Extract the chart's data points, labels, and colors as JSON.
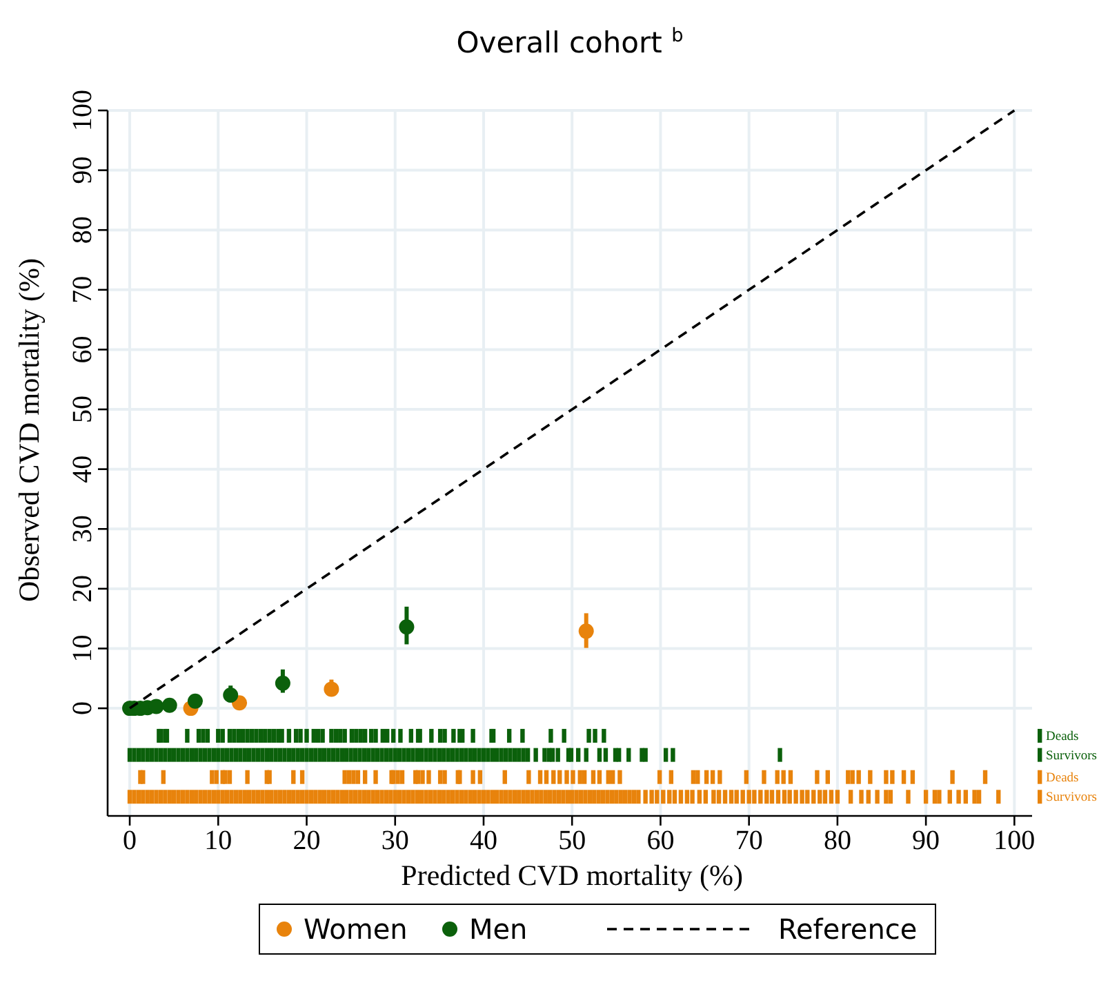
{
  "chart_data": {
    "type": "scatter",
    "title": "Overall cohort $^{b}$",
    "xlabel": "Predicted CVD mortality (%)",
    "ylabel": "Observed CVD mortality (%)",
    "xlim": [
      -2.5,
      102
    ],
    "ylim": [
      -18,
      100
    ],
    "xticks": [
      0,
      10,
      20,
      30,
      40,
      50,
      60,
      70,
      80,
      90,
      100
    ],
    "yticks": [
      0,
      10,
      20,
      30,
      40,
      50,
      60,
      70,
      80,
      90,
      100
    ],
    "grid": true,
    "legend": "bottom",
    "marker": "circle",
    "series": [
      {
        "name": "Women",
        "type": "scatter",
        "color": "#e8830c",
        "x": [
          6.9,
          12.4,
          22.8,
          51.6
        ],
        "values": [
          0,
          0.9,
          3.2,
          12.9
        ],
        "errors": [
          null,
          null,
          [
            2,
            4.8
          ],
          [
            10.1,
            15.9
          ]
        ]
      },
      {
        "name": "Men",
        "type": "scatter",
        "color": "#0b600b",
        "x": [
          0,
          0.5,
          1.2,
          2,
          3,
          4.5,
          7.4,
          11.4,
          17.3,
          31.3
        ],
        "values": [
          0,
          0,
          0,
          0.1,
          0.3,
          0.5,
          1.2,
          2.2,
          4.2,
          13.6
        ],
        "errors": [
          null,
          null,
          null,
          null,
          null,
          null,
          [
            0.5,
            2
          ],
          [
            1,
            3.8
          ],
          [
            2.6,
            6.5
          ],
          [
            10.7,
            17
          ]
        ]
      },
      {
        "name": "Reference",
        "type": "line",
        "color": "#000000",
        "line_style": "dashed",
        "marker": "none",
        "x": [
          0,
          100
        ],
        "values": [
          0,
          100
        ]
      },
      {
        "name": "Deads",
        "type": "scatter",
        "marker": "square",
        "color": "#0b600b",
        "x": [
          3.3,
          3.5,
          4.0,
          4.2,
          6.5,
          7.8,
          8.3,
          8.8,
          10.0,
          10.5,
          11.3,
          11.8,
          12.3,
          12.8,
          13.3,
          13.8,
          14.3,
          14.8,
          15.3,
          15.8,
          16.3,
          16.8,
          17.2,
          18.0,
          18.8,
          19.3,
          20.0,
          20.8,
          21.3,
          21.8,
          22.8,
          23.3,
          23.8,
          24.3,
          25.1,
          25.6,
          26.1,
          26.6,
          27.3,
          27.8,
          28.6,
          29.1,
          29.8,
          30.6,
          31.8,
          32.6,
          32.8,
          34.1,
          35.1,
          35.6,
          36.6,
          37.3,
          37.6,
          38.8,
          40.9,
          41.1,
          42.9,
          44.4,
          47.6,
          49.1,
          51.9,
          52.6,
          53.6
        ],
        "values": [
          -4.6,
          -4.6,
          -4.6,
          -4.6,
          -4.6,
          -4.6,
          -4.6,
          -4.6,
          -4.6,
          -4.6,
          -4.6,
          -4.6,
          -4.6,
          -4.6,
          -4.6,
          -4.6,
          -4.6,
          -4.6,
          -4.6,
          -4.6,
          -4.6,
          -4.6,
          -4.6,
          -4.6,
          -4.6,
          -4.6,
          -4.6,
          -4.6,
          -4.6,
          -4.6,
          -4.6,
          -4.6,
          -4.6,
          -4.6,
          -4.6,
          -4.6,
          -4.6,
          -4.6,
          -4.6,
          -4.6,
          -4.6,
          -4.6,
          -4.6,
          -4.6,
          -4.6,
          -4.6,
          -4.6,
          -4.6,
          -4.6,
          -4.6,
          -4.6,
          -4.6,
          -4.6,
          -4.6,
          -4.6,
          -4.6,
          -4.6,
          -4.6,
          -4.6,
          -4.6,
          -4.6,
          -4.6,
          -4.6
        ]
      },
      {
        "name": "Survivors",
        "type": "scatter",
        "marker": "square",
        "color": "#0b600b",
        "x": [
          0,
          0.5,
          1,
          1.5,
          2,
          2.5,
          3,
          3.5,
          4,
          4.5,
          5,
          5.5,
          6,
          6.5,
          7,
          7.5,
          8,
          8.5,
          9,
          9.5,
          10,
          10.5,
          11,
          11.5,
          12,
          12.5,
          13,
          13.5,
          14,
          14.5,
          15,
          15.5,
          16,
          16.5,
          17,
          17.5,
          18,
          18.5,
          19,
          19.5,
          20,
          20.5,
          21,
          21.5,
          22,
          22.5,
          23,
          23.5,
          24,
          24.5,
          25,
          25.5,
          26,
          26.5,
          27,
          27.5,
          28,
          28.5,
          29,
          29.5,
          30,
          30.5,
          31,
          31.5,
          32,
          32.5,
          33,
          33.5,
          34,
          34.5,
          35,
          35.5,
          36,
          36.5,
          37,
          37.5,
          38,
          38.5,
          39,
          39.5,
          40,
          40.5,
          41,
          41.5,
          42,
          42.5,
          43,
          43.5,
          44,
          44.5,
          45,
          45.9,
          46.9,
          47.4,
          47.8,
          48.4,
          49.6,
          49.9,
          50.7,
          51.6,
          53.1,
          53.8,
          54.9,
          55.3,
          56.4,
          57.9,
          58.3,
          60.6,
          61.4,
          73.5
        ],
        "values": [
          -7.8,
          -7.8,
          -7.8,
          -7.8,
          -7.8,
          -7.8,
          -7.8,
          -7.8,
          -7.8,
          -7.8,
          -7.8,
          -7.8,
          -7.8,
          -7.8,
          -7.8,
          -7.8,
          -7.8,
          -7.8,
          -7.8,
          -7.8,
          -7.8,
          -7.8,
          -7.8,
          -7.8,
          -7.8,
          -7.8,
          -7.8,
          -7.8,
          -7.8,
          -7.8,
          -7.8,
          -7.8,
          -7.8,
          -7.8,
          -7.8,
          -7.8,
          -7.8,
          -7.8,
          -7.8,
          -7.8,
          -7.8,
          -7.8,
          -7.8,
          -7.8,
          -7.8,
          -7.8,
          -7.8,
          -7.8,
          -7.8,
          -7.8,
          -7.8,
          -7.8,
          -7.8,
          -7.8,
          -7.8,
          -7.8,
          -7.8,
          -7.8,
          -7.8,
          -7.8,
          -7.8,
          -7.8,
          -7.8,
          -7.8,
          -7.8,
          -7.8,
          -7.8,
          -7.8,
          -7.8,
          -7.8,
          -7.8,
          -7.8,
          -7.8,
          -7.8,
          -7.8,
          -7.8,
          -7.8,
          -7.8,
          -7.8,
          -7.8,
          -7.8,
          -7.8,
          -7.8,
          -7.8,
          -7.8,
          -7.8,
          -7.8,
          -7.8,
          -7.8,
          -7.8,
          -7.8,
          -7.8,
          -7.8,
          -7.8,
          -7.8,
          -7.8,
          -7.8,
          -7.8,
          -7.8,
          -7.8,
          -7.8,
          -7.8,
          -7.8,
          -7.8,
          -7.8,
          -7.8,
          -7.8,
          -7.8,
          -7.8,
          -7.8
        ]
      },
      {
        "name": "Deads",
        "type": "scatter",
        "marker": "square",
        "color": "#e8830c",
        "x": [
          1.2,
          1.5,
          3.8,
          9.3,
          9.8,
          10.5,
          10.8,
          11.3,
          13.3,
          15.5,
          15.8,
          18.5,
          19.5,
          24.3,
          24.8,
          25.3,
          25.8,
          26.6,
          27.8,
          29.6,
          29.8,
          30.3,
          30.8,
          32.3,
          32.6,
          33.1,
          33.8,
          35.1,
          35.6,
          37.1,
          37.3,
          38.8,
          39.6,
          42.4,
          45.1,
          46.4,
          47.1,
          47.9,
          48.6,
          49.4,
          50.1,
          50.9,
          51.4,
          52.4,
          53.1,
          54.1,
          54.6,
          55.4,
          59.9,
          61.2,
          63.7,
          64.2,
          65.2,
          65.9,
          66.7,
          69.7,
          71.7,
          73.2,
          73.9,
          74.7,
          77.7,
          78.9,
          81.2,
          81.7,
          82.4,
          83.7,
          85.5,
          86.2,
          87.5,
          88.5,
          93.0,
          96.7
        ],
        "values": [
          -11.5,
          -11.5,
          -11.5,
          -11.5,
          -11.5,
          -11.5,
          -11.5,
          -11.5,
          -11.5,
          -11.5,
          -11.5,
          -11.5,
          -11.5,
          -11.5,
          -11.5,
          -11.5,
          -11.5,
          -11.5,
          -11.5,
          -11.5,
          -11.5,
          -11.5,
          -11.5,
          -11.5,
          -11.5,
          -11.5,
          -11.5,
          -11.5,
          -11.5,
          -11.5,
          -11.5,
          -11.5,
          -11.5,
          -11.5,
          -11.5,
          -11.5,
          -11.5,
          -11.5,
          -11.5,
          -11.5,
          -11.5,
          -11.5,
          -11.5,
          -11.5,
          -11.5,
          -11.5,
          -11.5,
          -11.5,
          -11.5,
          -11.5,
          -11.5,
          -11.5,
          -11.5,
          -11.5,
          -11.5,
          -11.5,
          -11.5,
          -11.5,
          -11.5,
          -11.5,
          -11.5,
          -11.5,
          -11.5,
          -11.5,
          -11.5,
          -11.5,
          -11.5,
          -11.5,
          -11.5,
          -11.5,
          -11.5,
          -11.5
        ]
      },
      {
        "name": "Survivors",
        "type": "scatter",
        "marker": "square",
        "color": "#e8830c",
        "x": [
          0,
          0.5,
          1,
          1.5,
          2,
          2.5,
          3,
          3.5,
          4,
          4.5,
          5,
          5.5,
          6,
          6.5,
          7,
          7.5,
          8,
          8.5,
          9,
          9.5,
          10,
          10.5,
          11,
          11.5,
          12,
          12.5,
          13,
          13.5,
          14,
          14.5,
          15,
          15.5,
          16,
          16.5,
          17,
          17.5,
          18,
          18.5,
          19,
          19.5,
          20,
          20.5,
          21,
          21.5,
          22,
          22.5,
          23,
          23.5,
          24,
          24.5,
          25,
          25.5,
          26,
          26.5,
          27,
          27.5,
          28,
          28.5,
          29,
          29.5,
          30,
          30.5,
          31,
          31.5,
          32,
          32.5,
          33,
          33.5,
          34,
          34.5,
          35,
          35.5,
          36,
          36.5,
          37,
          37.5,
          38,
          38.5,
          39,
          39.5,
          40,
          40.5,
          41,
          41.5,
          42,
          42.5,
          43,
          43.5,
          44,
          44.5,
          45,
          45.5,
          46,
          46.5,
          47,
          47.5,
          48,
          48.5,
          49,
          49.5,
          50,
          50.5,
          51,
          51.5,
          52,
          52.5,
          53,
          53.5,
          54,
          54.5,
          55,
          55.5,
          56,
          56.5,
          57,
          57.5,
          58.3,
          59,
          59.6,
          60.3,
          61,
          61.6,
          62.3,
          63,
          63.6,
          64.4,
          65.1,
          66,
          66.6,
          67.3,
          68,
          68.6,
          69.3,
          70,
          70.6,
          71.3,
          72,
          72.6,
          73.3,
          74,
          74.6,
          75.3,
          76,
          76.6,
          77.3,
          78,
          78.6,
          79.3,
          80,
          81.5,
          82.7,
          83.5,
          84.5,
          85.5,
          86,
          88,
          90,
          91,
          91.5,
          92.7,
          93.7,
          94.5,
          95.5,
          96,
          98.2
        ],
        "values": [
          -14.8,
          -14.8,
          -14.8,
          -14.8,
          -14.8,
          -14.8,
          -14.8,
          -14.8,
          -14.8,
          -14.8,
          -14.8,
          -14.8,
          -14.8,
          -14.8,
          -14.8,
          -14.8,
          -14.8,
          -14.8,
          -14.8,
          -14.8,
          -14.8,
          -14.8,
          -14.8,
          -14.8,
          -14.8,
          -14.8,
          -14.8,
          -14.8,
          -14.8,
          -14.8,
          -14.8,
          -14.8,
          -14.8,
          -14.8,
          -14.8,
          -14.8,
          -14.8,
          -14.8,
          -14.8,
          -14.8,
          -14.8,
          -14.8,
          -14.8,
          -14.8,
          -14.8,
          -14.8,
          -14.8,
          -14.8,
          -14.8,
          -14.8,
          -14.8,
          -14.8,
          -14.8,
          -14.8,
          -14.8,
          -14.8,
          -14.8,
          -14.8,
          -14.8,
          -14.8,
          -14.8,
          -14.8,
          -14.8,
          -14.8,
          -14.8,
          -14.8,
          -14.8,
          -14.8,
          -14.8,
          -14.8,
          -14.8,
          -14.8,
          -14.8,
          -14.8,
          -14.8,
          -14.8,
          -14.8,
          -14.8,
          -14.8,
          -14.8,
          -14.8,
          -14.8,
          -14.8,
          -14.8,
          -14.8,
          -14.8,
          -14.8,
          -14.8,
          -14.8,
          -14.8,
          -14.8,
          -14.8,
          -14.8,
          -14.8,
          -14.8,
          -14.8,
          -14.8,
          -14.8,
          -14.8,
          -14.8,
          -14.8,
          -14.8,
          -14.8,
          -14.8,
          -14.8,
          -14.8,
          -14.8,
          -14.8,
          -14.8,
          -14.8,
          -14.8,
          -14.8,
          -14.8,
          -14.8,
          -14.8,
          -14.8,
          -14.8,
          -14.8,
          -14.8,
          -14.8,
          -14.8,
          -14.8,
          -14.8,
          -14.8,
          -14.8,
          -14.8,
          -14.8,
          -14.8,
          -14.8,
          -14.8,
          -14.8,
          -14.8,
          -14.8,
          -14.8,
          -14.8,
          -14.8,
          -14.8,
          -14.8,
          -14.8,
          -14.8,
          -14.8,
          -14.8,
          -14.8,
          -14.8,
          -14.8,
          -14.8,
          -14.8,
          -14.8,
          -14.8,
          -14.8,
          -14.8,
          -14.8,
          -14.8,
          -14.8,
          -14.8,
          -14.8,
          -14.8,
          -14.8,
          -14.8,
          -14.8,
          -14.8,
          -14.8,
          -14.8,
          -14.8,
          -14.8
        ]
      }
    ]
  }
}
